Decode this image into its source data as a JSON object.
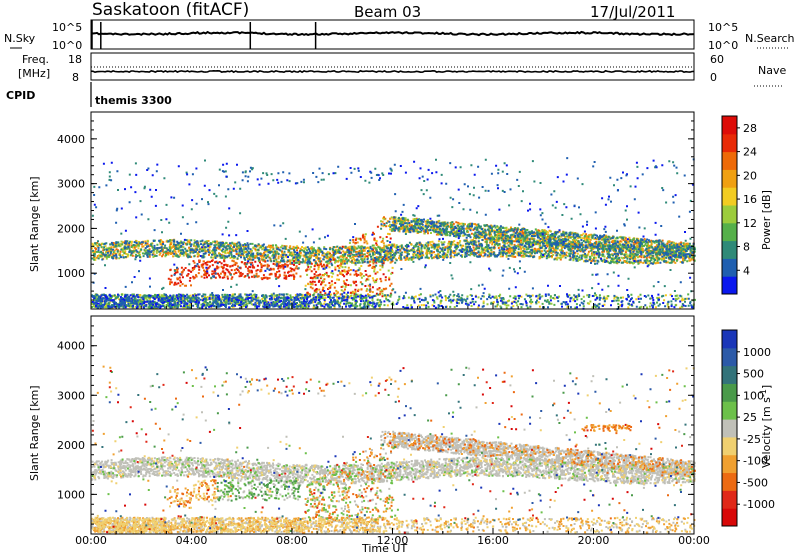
{
  "header": {
    "station": "Saskatoon (fitACF)",
    "beam": "Beam 03",
    "date": "17/Jul/2011"
  },
  "status_panels": {
    "nsky_label": "N.Sky",
    "nsky_ticks": [
      "10^5",
      "10^0"
    ],
    "nsearch_label": "N.Search",
    "nsearch_ticks": [
      "10^5",
      "10^0"
    ],
    "freq_label_1": "Freq.",
    "freq_label_2": "[MHz]",
    "freq_ticks": [
      "18",
      "8"
    ],
    "nave_label": "Nave",
    "nave_ticks": [
      "60",
      "0"
    ],
    "cpid_label": "CPID",
    "cpid_value": "themis 3300"
  },
  "colors": {
    "power_scale": [
      "#0a18ee",
      "#1f5fb0",
      "#2f8a78",
      "#55b04a",
      "#9ccc3c",
      "#f2cc22",
      "#f0a012",
      "#ee6a08",
      "#e82a06",
      "#dd0c08"
    ],
    "velocity_scale": [
      "#1a36b8",
      "#2c5aa8",
      "#33737a",
      "#4a9a4a",
      "#6cc04a",
      "#c0c0b8",
      "#f0d070",
      "#f0a030",
      "#ec6a12",
      "#e02818",
      "#d80808"
    ]
  },
  "chart_data": [
    {
      "type": "heatmap",
      "name": "power",
      "ylabel": "Slant Range [km]",
      "y_ticks": [
        "1000",
        "2000",
        "3000",
        "4000"
      ],
      "ylim": [
        200,
        4600
      ],
      "xlim": [
        "00:00",
        "24:00"
      ],
      "colorbar_label": "Power [dB]",
      "colorbar_ticks": [
        "4",
        "8",
        "12",
        "16",
        "20",
        "24",
        "28"
      ],
      "colorbar_range": [
        0,
        30
      ],
      "structures": [
        {
          "t_start": 0.0,
          "t_end": 24.0,
          "range_km": 1500,
          "width_km": 300,
          "level_db": 14
        },
        {
          "t_start": 3.0,
          "t_end": 8.2,
          "range_km": 1150,
          "width_km": 350,
          "level_db": 28
        },
        {
          "t_start": 8.6,
          "t_end": 12.0,
          "range_km": 900,
          "width_km": 700,
          "level_db": 22
        },
        {
          "t_start": 12.0,
          "t_end": 24.0,
          "range_km": 2000,
          "width_km": 250,
          "level_db": 18
        }
      ]
    },
    {
      "type": "heatmap",
      "name": "velocity",
      "ylabel": "Slant Range [km]",
      "xlabel": "Time UT",
      "x_ticks": [
        "00:00",
        "04:00",
        "08:00",
        "12:00",
        "16:00",
        "20:00",
        "00:00"
      ],
      "y_ticks": [
        "1000",
        "2000",
        "3000",
        "4000"
      ],
      "ylim": [
        200,
        4600
      ],
      "colorbar_label": "Velocity [m s^-1]",
      "colorbar_ticks": [
        "1000",
        "500",
        "100",
        "25",
        "-25",
        "-100",
        "-500",
        "-1000"
      ],
      "structures": [
        {
          "t_start": 0.0,
          "t_end": 24.0,
          "range_km": 1500,
          "width_km": 300,
          "velocity": 0
        },
        {
          "t_start": 3.0,
          "t_end": 5.0,
          "range_km": 750,
          "width_km": 300,
          "velocity": -200
        },
        {
          "t_start": 5.0,
          "t_end": 8.0,
          "range_km": 1200,
          "width_km": 300,
          "velocity": 150
        },
        {
          "t_start": 19.5,
          "t_end": 21.5,
          "range_km": 2350,
          "width_km": 100,
          "velocity": -200
        }
      ]
    }
  ]
}
